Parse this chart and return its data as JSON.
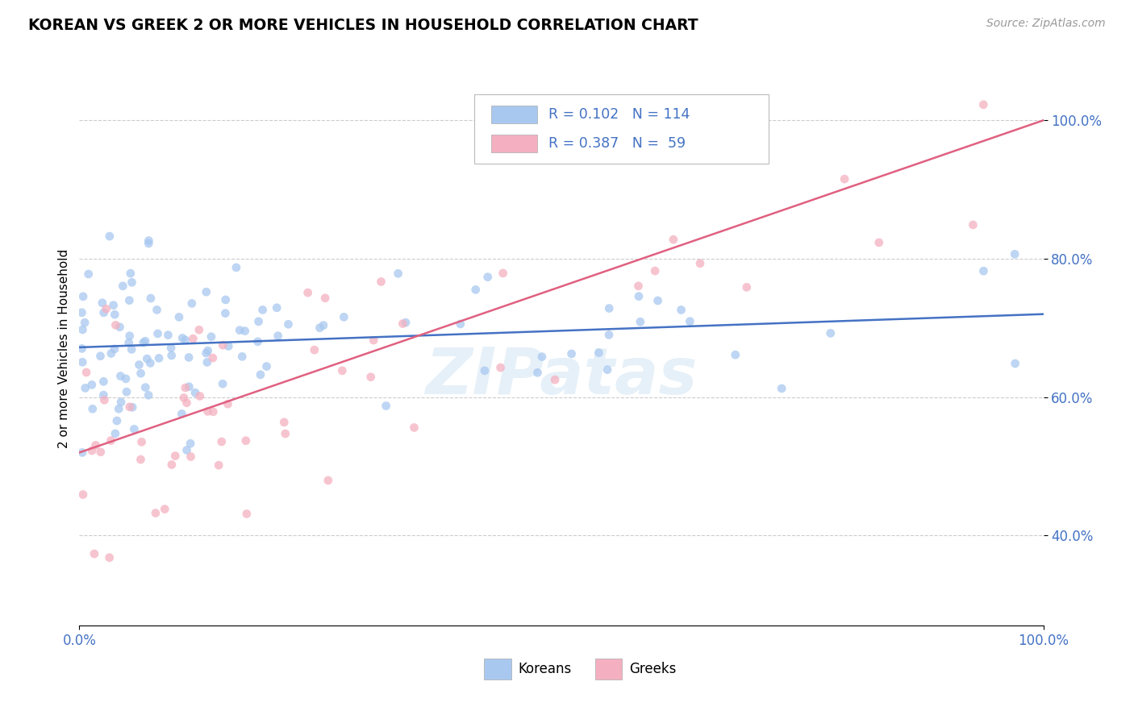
{
  "title": "KOREAN VS GREEK 2 OR MORE VEHICLES IN HOUSEHOLD CORRELATION CHART",
  "source_text": "Source: ZipAtlas.com",
  "ylabel": "2 or more Vehicles in Household",
  "korean_color": "#a8c8f0",
  "greek_color": "#f4b0c0",
  "korean_line_color": "#4472c4",
  "greek_line_color": "#e06080",
  "korean_R": 0.102,
  "korean_N": 114,
  "greek_R": 0.387,
  "greek_N": 59,
  "bottom_legend_korean": "Koreans",
  "bottom_legend_greek": "Greeks",
  "watermark": "ZIPatas",
  "tick_color": "#4472c4",
  "grid_color": "#cccccc",
  "ytick_values": [
    0.4,
    0.6,
    0.8,
    1.0
  ],
  "ytick_labels": [
    "40.0%",
    "60.0%",
    "80.0%",
    "100.0%"
  ],
  "korean_intercept": 0.672,
  "korean_slope": 0.048,
  "greek_intercept": 0.52,
  "greek_slope": 0.48
}
